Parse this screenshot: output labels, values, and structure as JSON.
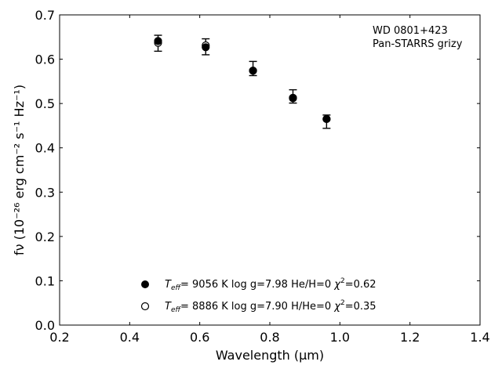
{
  "chart_data": {
    "type": "scatter",
    "xlabel": "Wavelength (μm)",
    "ylabel": "fν (10⁻²⁶ erg cm⁻² s⁻¹ Hz⁻¹)",
    "xlim": [
      0.2,
      1.4
    ],
    "ylim": [
      0.0,
      0.7
    ],
    "xticks": [
      "0.2",
      "0.4",
      "0.6",
      "0.8",
      "1.0",
      "1.2",
      "1.4"
    ],
    "yticks": [
      "0.0",
      "0.1",
      "0.2",
      "0.3",
      "0.4",
      "0.5",
      "0.6",
      "0.7"
    ],
    "annotation": [
      "WD 0801+423",
      "Pan-STARRS grizy"
    ],
    "observed": {
      "x": [
        0.481,
        0.617,
        0.752,
        0.866,
        0.962
      ],
      "y": [
        0.636,
        0.628,
        0.579,
        0.516,
        0.459
      ],
      "err": [
        0.018,
        0.018,
        0.016,
        0.015,
        0.015
      ]
    },
    "series": [
      {
        "marker": "filled-circle",
        "label": "T_eff= 9056 K  log g=7.98  He/H=0  χ²=0.62",
        "x": [
          0.481,
          0.617,
          0.752,
          0.866,
          0.962
        ],
        "y": [
          0.641,
          0.627,
          0.574,
          0.513,
          0.465
        ]
      },
      {
        "marker": "open-circle",
        "label": "T_eff= 8886 K  log g=7.90  H/He=0  χ²=0.35",
        "x": [
          0.481,
          0.617,
          0.752,
          0.866,
          0.962
        ],
        "y": [
          0.637,
          0.631,
          0.574,
          0.512,
          0.465
        ]
      }
    ],
    "legend": [
      {
        "marker": "filled-circle",
        "teff_label": "T",
        "teff_sub": "eff",
        "rest": "=  9056 K  log g=7.98  He/H=0  ",
        "chi": "χ",
        "chi_sup": "2",
        "chi_val": "=0.62"
      },
      {
        "marker": "open-circle",
        "teff_label": "T",
        "teff_sub": "eff",
        "rest": "=  8886 K  log g=7.90  H/He=0  ",
        "chi": "χ",
        "chi_sup": "2",
        "chi_val": "=0.35"
      }
    ],
    "legend_position": "bottom-center",
    "grid": false,
    "colors": {
      "marker": "#000000",
      "axes": "#000000"
    }
  }
}
